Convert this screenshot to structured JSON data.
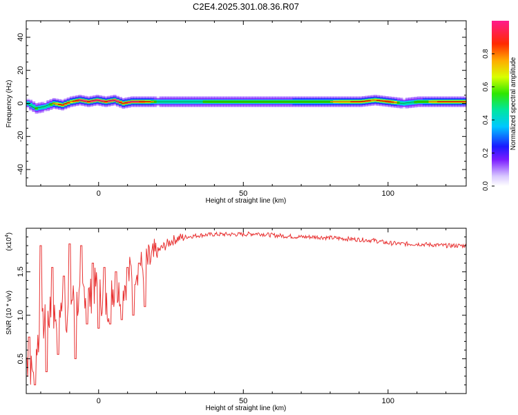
{
  "title": "C2E4.2025.301.08.36.R07",
  "chart_data": [
    {
      "type": "heatmap",
      "xlabel": "Height of straight line (km)",
      "ylabel": "Frequency (Hz)",
      "xlim": [
        -25,
        127
      ],
      "ylim": [
        -50,
        50
      ],
      "x_ticks": [
        0,
        50,
        100
      ],
      "y_ticks": [
        -40,
        -20,
        0,
        20,
        40
      ],
      "colorbar": {
        "label": "Normalized spectral amplitude",
        "range": [
          0,
          1
        ],
        "ticks": [
          "0.0",
          "0.2",
          "0.4",
          "0.6",
          "0.8"
        ]
      },
      "ridge": {
        "x": [
          -25,
          -22,
          -19,
          -16,
          -13,
          -10,
          -7,
          -4,
          -1,
          2,
          5,
          8,
          11,
          14,
          17,
          20,
          30,
          40,
          50,
          60,
          70,
          80,
          90,
          95,
          100,
          105,
          110,
          115,
          120,
          127
        ],
        "frequency": [
          0,
          -3,
          -2,
          0,
          -1,
          1,
          2,
          1,
          2,
          1,
          2,
          0,
          1,
          1,
          1,
          1,
          1,
          1,
          1,
          1,
          1,
          1,
          1,
          2,
          1,
          0,
          1,
          1,
          1,
          1
        ],
        "amplitude": [
          0.5,
          0.6,
          0.5,
          0.7,
          0.8,
          0.75,
          0.9,
          0.85,
          0.9,
          0.85,
          0.9,
          0.8,
          0.9,
          0.85,
          0.8,
          0.5,
          0.55,
          0.6,
          0.6,
          0.62,
          0.65,
          0.7,
          0.8,
          0.75,
          0.85,
          0.5,
          0.6,
          0.75,
          0.8,
          0.8
        ]
      }
    },
    {
      "type": "line",
      "xlabel": "Height of straight line (km)",
      "ylabel": "SNR (10 * v/v)",
      "scale_note": "(x10",
      "scale_exp": "4",
      "xlim": [
        -25,
        127
      ],
      "ylim": [
        0.1,
        2.0
      ],
      "x_ticks": [
        0,
        50,
        100
      ],
      "y_ticks": [
        "0.5",
        "1.0",
        "1.5"
      ],
      "series_color": "#e83030",
      "anchors_x": [
        -25,
        -23,
        -21,
        -19,
        -17,
        -15,
        -13,
        -11,
        -9,
        -7,
        -5,
        -3,
        -1,
        1,
        3,
        5,
        7,
        9,
        11,
        13,
        15,
        17,
        19,
        21,
        23,
        25,
        27,
        30,
        35,
        40,
        45,
        50,
        55,
        60,
        65,
        70,
        75,
        80,
        85,
        90,
        95,
        100,
        105,
        110,
        115,
        120,
        127
      ],
      "anchors_y": [
        0.5,
        0.35,
        0.7,
        0.9,
        1.0,
        1.0,
        1.1,
        1.0,
        1.2,
        1.15,
        1.3,
        1.2,
        1.35,
        1.2,
        1.1,
        1.3,
        1.25,
        1.35,
        1.5,
        1.55,
        1.55,
        1.6,
        1.65,
        1.75,
        1.8,
        1.85,
        1.88,
        1.9,
        1.92,
        1.93,
        1.93,
        1.93,
        1.94,
        1.92,
        1.91,
        1.9,
        1.9,
        1.89,
        1.88,
        1.87,
        1.86,
        1.83,
        1.82,
        1.82,
        1.81,
        1.8,
        1.8
      ],
      "peaks_x": [
        -24,
        -22,
        -20,
        -18,
        -16,
        -14,
        -12,
        -10,
        -8,
        -6,
        -4,
        -2,
        0,
        2,
        4,
        6,
        8,
        10,
        12,
        14,
        16
      ],
      "peaks_y": [
        0.75,
        0.2,
        1.8,
        0.35,
        1.55,
        0.55,
        1.45,
        1.82,
        0.5,
        1.8,
        0.9,
        1.6,
        0.85,
        1.55,
        0.9,
        1.5,
        0.95,
        1.55,
        1.0,
        1.6,
        1.1
      ]
    }
  ]
}
